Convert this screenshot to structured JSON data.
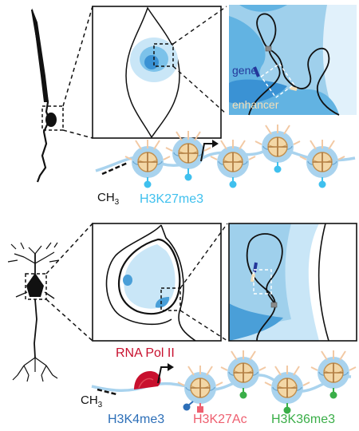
{
  "figure": {
    "top_panel": {
      "gene_label": "gene",
      "enhancer_label": "enhancer",
      "methyl_label": "CH",
      "methyl_subscript": "3",
      "mark_label": "H3K27me3"
    },
    "bottom_panel": {
      "polymerase_label": "RNA Pol II",
      "methyl_label": "CH",
      "methyl_subscript": "3",
      "mark_labels": [
        "H3K4me3",
        "H3K27Ac",
        "H3K36me3"
      ]
    },
    "colors": {
      "h3k27me3": "#3fc0ee",
      "h3k4me3": "#2d6fb8",
      "h3k27ac": "#ee5f6f",
      "h3k36me3": "#3aae48",
      "rna_pol_ii": "#c8102e",
      "dna_strand": "#a9d3ee",
      "gene": "#24379a",
      "enhancer": "#f4dfb8"
    }
  }
}
